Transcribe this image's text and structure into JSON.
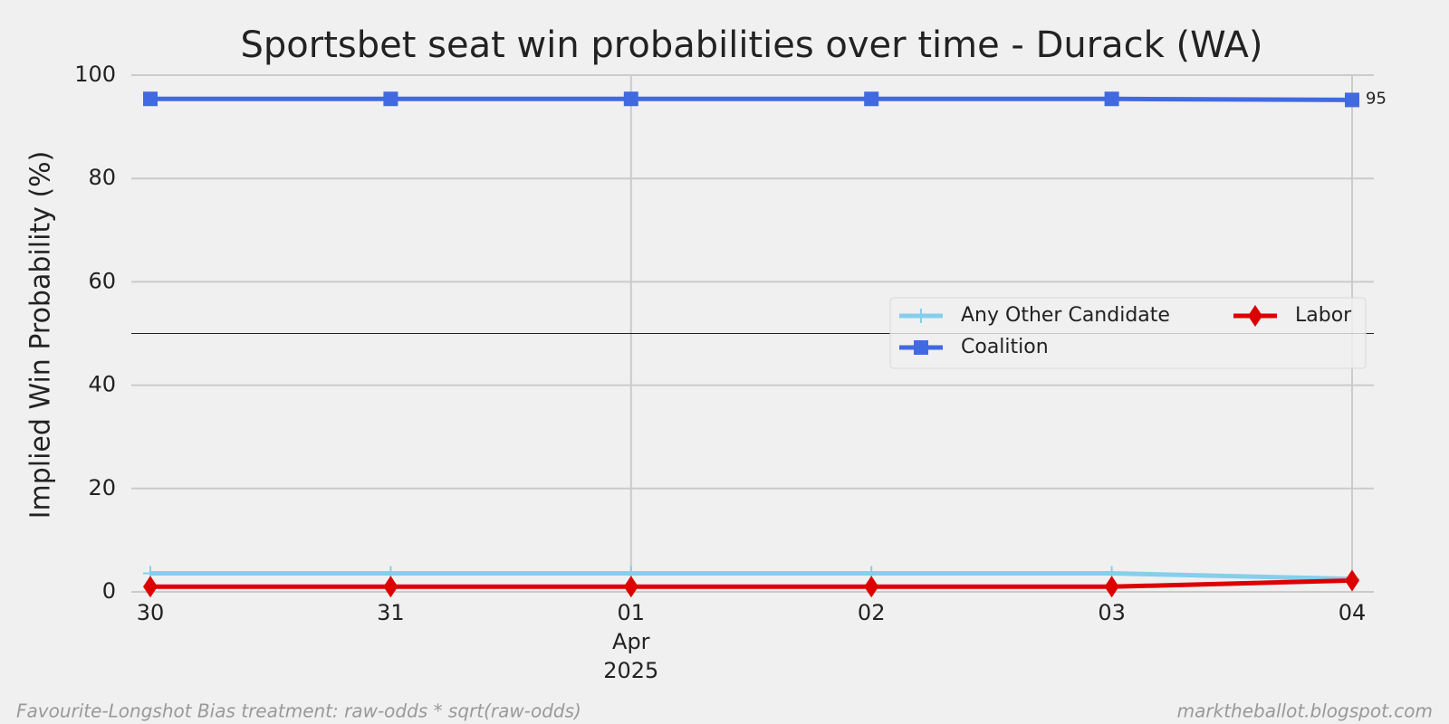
{
  "chart_data": {
    "type": "line",
    "title": "Sportsbet seat win probabilities over time - Durack (WA)",
    "y_label": "Implied Win Probability (%)",
    "categories": [
      "30",
      "31",
      "01",
      "02",
      "03",
      "04"
    ],
    "x_sublabels": [
      null,
      null,
      [
        "Apr",
        "2025"
      ],
      null,
      null,
      null
    ],
    "vgrid": [
      false,
      false,
      true,
      false,
      false,
      true
    ],
    "ylim": [
      0,
      100
    ],
    "yticks": [
      0,
      20,
      40,
      60,
      80,
      100
    ],
    "grid": true,
    "hline": 50,
    "legend": {
      "position": "right",
      "columns": 2
    },
    "series": [
      {
        "name": "Any Other Candidate",
        "color": "#87ceeb",
        "marker": "plus",
        "values": [
          3.6,
          3.6,
          3.6,
          3.6,
          3.6,
          2.5
        ]
      },
      {
        "name": "Coalition",
        "color": "#4169e1",
        "marker": "square",
        "values": [
          95.4,
          95.4,
          95.4,
          95.4,
          95.4,
          95.2
        ],
        "value_labels": [
          null,
          null,
          null,
          null,
          null,
          "95"
        ]
      },
      {
        "name": "Labor",
        "color": "#dd0000",
        "marker": "diamond",
        "values": [
          1.0,
          1.0,
          1.0,
          1.0,
          1.0,
          2.2
        ]
      }
    ],
    "footnote_left": "Favourite-Longshot Bias treatment: raw-odds * sqrt(raw-odds)",
    "footnote_right": "marktheballot.blogspot.com"
  }
}
